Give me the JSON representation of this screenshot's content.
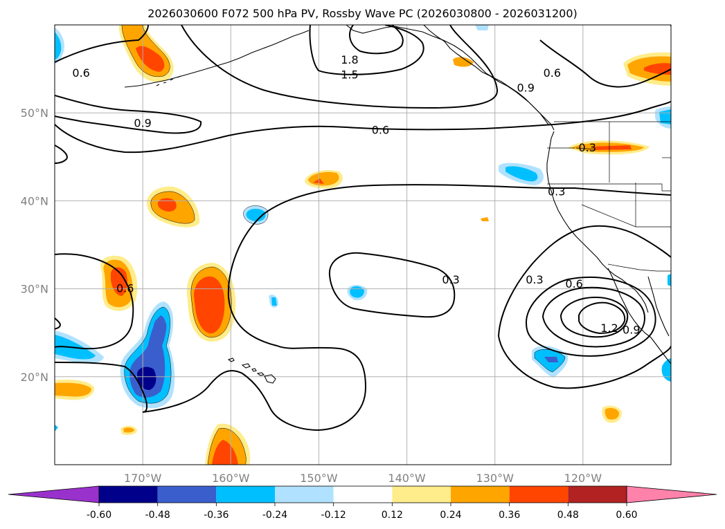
{
  "title": "2026030600 F072 500 hPa PV, Rossby Wave PC (2026030800 - 2026031200)",
  "map": {
    "lon_range": [
      -180,
      -110
    ],
    "lat_range": [
      10,
      60
    ],
    "lon_ticks": [
      {
        "lon": -170,
        "label": "170°W"
      },
      {
        "lon": -160,
        "label": "160°W"
      },
      {
        "lon": -150,
        "label": "150°W"
      },
      {
        "lon": -140,
        "label": "140°W"
      },
      {
        "lon": -130,
        "label": "130°W"
      },
      {
        "lon": -120,
        "label": "120°W"
      }
    ],
    "lat_ticks": [
      {
        "lat": 20,
        "label": "20°N"
      },
      {
        "lat": 30,
        "label": "30°N"
      },
      {
        "lat": 40,
        "label": "40°N"
      },
      {
        "lat": 50,
        "label": "50°N"
      }
    ],
    "contour_labels": [
      {
        "text": "1.8",
        "lon": -146.5,
        "lat": 56.0
      },
      {
        "text": "1.5",
        "lon": -146.5,
        "lat": 54.3
      },
      {
        "text": "0.6",
        "lon": -177.0,
        "lat": 54.5
      },
      {
        "text": "0.9",
        "lon": -170.0,
        "lat": 48.8
      },
      {
        "text": "0.6",
        "lon": -143.0,
        "lat": 48.0
      },
      {
        "text": "0.9",
        "lon": -126.5,
        "lat": 52.8
      },
      {
        "text": "0.6",
        "lon": -123.5,
        "lat": 54.5
      },
      {
        "text": "0.3",
        "lon": -119.5,
        "lat": 46.0
      },
      {
        "text": "0.3",
        "lon": -123.0,
        "lat": 41.0
      },
      {
        "text": "0.3",
        "lon": -135.0,
        "lat": 31.0
      },
      {
        "text": "0.3",
        "lon": -125.5,
        "lat": 31.0
      },
      {
        "text": "0.6",
        "lon": -121.0,
        "lat": 30.5
      },
      {
        "text": "0.6",
        "lon": -172.0,
        "lat": 30.0
      },
      {
        "text": "1.2",
        "lon": -117.0,
        "lat": 25.5
      },
      {
        "text": "0.9",
        "lon": -114.5,
        "lat": 25.3
      }
    ]
  },
  "colorbar": {
    "levels": [
      "-0.60",
      "-0.48",
      "-0.36",
      "-0.24",
      "-0.12",
      "0.12",
      "0.24",
      "0.36",
      "0.48",
      "0.60"
    ],
    "colors": [
      "#9932cc",
      "#00008b",
      "#3a5fcd",
      "#00bfff",
      "#b0e2ff",
      "#ffffff",
      "#ffec8b",
      "#ffa500",
      "#ff4500",
      "#b22222",
      "#ff82ab"
    ]
  },
  "colors": {
    "neg_strong": "#00008b",
    "neg_mid": "#3a5fcd",
    "neg": "#00bfff",
    "neg_light": "#b0e2ff",
    "pos_light": "#ffec8b",
    "pos": "#ffa500",
    "pos_strong": "#ff4500",
    "grid": "#b0b0b0",
    "tick_text": "#808080"
  }
}
